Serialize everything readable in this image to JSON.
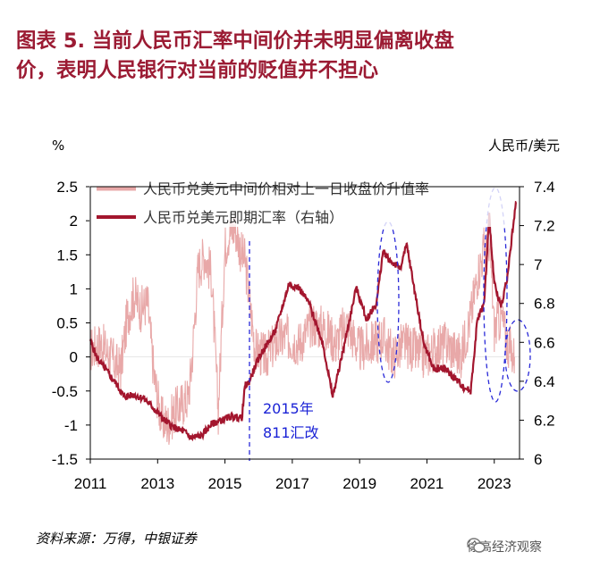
{
  "title_line1": "图表 5.   当前人民币汇率中间价并未明显偏离收盘",
  "title_line2": "价，表明人民银行对当前的贬值并不担心",
  "source": "资料来源：万得，中银证券",
  "watermark": "徐高经济观察",
  "watermark_icon": "wechat-icon",
  "annotation": {
    "line1": "2015年",
    "line2": "811汇改"
  },
  "chart_data": {
    "type": "line",
    "left_unit": "%",
    "right_unit": "人民币/美元",
    "x_ticks": [
      "2011",
      "2013",
      "2015",
      "2017",
      "2019",
      "2021",
      "2023"
    ],
    "xlim": [
      2011,
      2023.75
    ],
    "y_left": {
      "lim": [
        -1.5,
        2.5
      ],
      "ticks": [
        "2.5",
        "2",
        "1.5",
        "1",
        "0.5",
        "0",
        "-0.5",
        "-1",
        "-1.5"
      ]
    },
    "y_right": {
      "lim": [
        6.0,
        7.4
      ],
      "ticks": [
        "7.4",
        "7.2",
        "7",
        "6.8",
        "6.6",
        "6.4",
        "6.2",
        "6"
      ]
    },
    "grid": false,
    "legend_position": "top",
    "series": [
      {
        "name": "人民币兑美元中间价相对上一日收盘价升值率",
        "axis": "left",
        "color": "#e8a8a8",
        "x": [
          2011.0,
          2011.3,
          2011.6,
          2011.9,
          2012.1,
          2012.3,
          2012.5,
          2012.7,
          2012.9,
          2013.1,
          2013.3,
          2013.5,
          2013.7,
          2013.9,
          2014.0,
          2014.2,
          2014.4,
          2014.6,
          2014.8,
          2015.0,
          2015.1,
          2015.3,
          2015.5,
          2015.6,
          2015.9,
          2016.2,
          2016.5,
          2016.8,
          2017.2,
          2017.6,
          2018.0,
          2018.3,
          2018.6,
          2019.0,
          2019.4,
          2019.7,
          2020.0,
          2020.3,
          2020.6,
          2020.9,
          2021.2,
          2021.6,
          2022.0,
          2022.3,
          2022.5,
          2022.7,
          2022.9,
          2023.0,
          2023.2,
          2023.4,
          2023.6
        ],
        "y": [
          0.1,
          0.2,
          0.0,
          -0.2,
          0.6,
          0.9,
          0.7,
          0.8,
          -0.3,
          -0.9,
          -1.0,
          -0.8,
          -0.7,
          -0.6,
          -0.2,
          1.3,
          1.5,
          1.2,
          -0.8,
          1.6,
          1.8,
          1.9,
          1.5,
          1.4,
          0.1,
          0.0,
          0.2,
          0.3,
          0.2,
          0.5,
          0.4,
          0.2,
          0.5,
          0.1,
          0.2,
          0.3,
          0.0,
          0.2,
          0.1,
          0.0,
          0.1,
          0.2,
          0.0,
          0.6,
          1.2,
          1.6,
          1.4,
          0.4,
          0.6,
          0.2,
          0.0
        ]
      },
      {
        "name": "人民币兑美元即期汇率（右轴）",
        "axis": "right",
        "color": "#a3162e",
        "x": [
          2011.0,
          2011.2,
          2011.5,
          2011.8,
          2012.0,
          2012.3,
          2012.6,
          2012.9,
          2013.2,
          2013.5,
          2013.8,
          2014.0,
          2014.3,
          2014.6,
          2014.9,
          2015.2,
          2015.5,
          2015.6,
          2015.7,
          2016.0,
          2016.5,
          2016.9,
          2017.2,
          2017.5,
          2017.9,
          2018.2,
          2018.5,
          2018.9,
          2019.2,
          2019.5,
          2019.7,
          2019.9,
          2020.2,
          2020.4,
          2020.6,
          2020.9,
          2021.2,
          2021.5,
          2021.8,
          2022.1,
          2022.3,
          2022.5,
          2022.7,
          2022.85,
          2023.0,
          2023.2,
          2023.4,
          2023.55,
          2023.65
        ],
        "y": [
          6.61,
          6.52,
          6.45,
          6.38,
          6.32,
          6.33,
          6.31,
          6.26,
          6.2,
          6.16,
          6.14,
          6.11,
          6.12,
          6.18,
          6.2,
          6.22,
          6.21,
          6.38,
          6.39,
          6.52,
          6.66,
          6.9,
          6.88,
          6.8,
          6.6,
          6.32,
          6.55,
          6.88,
          6.72,
          6.8,
          7.07,
          7.02,
          6.98,
          7.1,
          6.9,
          6.6,
          6.46,
          6.47,
          6.42,
          6.37,
          6.35,
          6.72,
          6.8,
          7.25,
          6.9,
          6.78,
          6.95,
          7.18,
          7.32
        ]
      }
    ]
  }
}
